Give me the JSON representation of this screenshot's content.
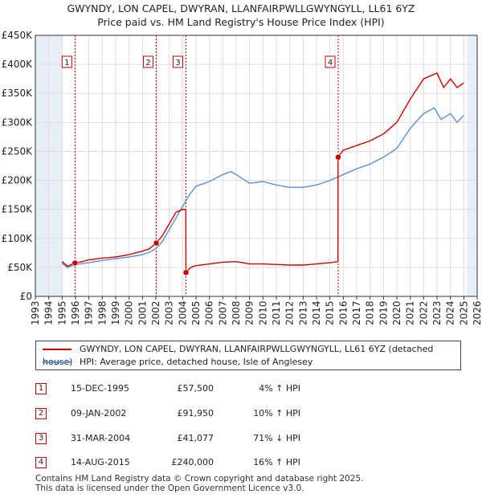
{
  "title_line1": "GWYNDY, LON CAPEL, DWYRAN, LLANFAIRPWLLGWYNGYLL, LL61 6YZ",
  "title_line2": "Price paid vs. HM Land Registry's House Price Index (HPI)",
  "colors": {
    "price": "#cc0000",
    "hpi": "#5b8fd0",
    "grid": "#dddddd",
    "shade": "#e8eef7",
    "marker": "#cc0000"
  },
  "chart_data": {
    "type": "line",
    "xlim": [
      1993,
      2026
    ],
    "ylim": [
      0,
      450000
    ],
    "x_ticks": [
      "1993",
      "1994",
      "1995",
      "1996",
      "1997",
      "1998",
      "1999",
      "2000",
      "2001",
      "2002",
      "2003",
      "2004",
      "2005",
      "2006",
      "2007",
      "2008",
      "2009",
      "2010",
      "2011",
      "2012",
      "2013",
      "2014",
      "2015",
      "2016",
      "2017",
      "2018",
      "2019",
      "2020",
      "2021",
      "2022",
      "2023",
      "2024",
      "2025",
      "2026"
    ],
    "y_ticks": [
      {
        "value": 0,
        "label": "£0"
      },
      {
        "value": 50000,
        "label": "£50K"
      },
      {
        "value": 100000,
        "label": "£100K"
      },
      {
        "value": 150000,
        "label": "£150K"
      },
      {
        "value": 200000,
        "label": "£200K"
      },
      {
        "value": 250000,
        "label": "£250K"
      },
      {
        "value": 300000,
        "label": "£300K"
      },
      {
        "value": 350000,
        "label": "£350K"
      },
      {
        "value": 400000,
        "label": "£400K"
      },
      {
        "value": 450000,
        "label": "£450K"
      }
    ],
    "data_start": 1995.0,
    "data_end": 2025.25,
    "series": [
      {
        "name": "GWYNDY, LON CAPEL, DWYRAN, LLANFAIRPWLLGWYNGYLL, LL61 6YZ (detached house)",
        "color": "#cc0000",
        "points": [
          [
            1995.0,
            60000
          ],
          [
            1995.4,
            52000
          ],
          [
            1995.96,
            57500
          ],
          [
            1996.5,
            60000
          ],
          [
            1997,
            63000
          ],
          [
            1998,
            66000
          ],
          [
            1999,
            68000
          ],
          [
            2000,
            72000
          ],
          [
            2001,
            78000
          ],
          [
            2001.5,
            82000
          ],
          [
            2002.03,
            91950
          ],
          [
            2002.5,
            105000
          ],
          [
            2003,
            125000
          ],
          [
            2003.5,
            145000
          ],
          [
            2004.0,
            150000
          ],
          [
            2004.24,
            150000
          ],
          [
            2004.25,
            41077
          ],
          [
            2004.6,
            50000
          ],
          [
            2005,
            53000
          ],
          [
            2006,
            56000
          ],
          [
            2007,
            59000
          ],
          [
            2008,
            60000
          ],
          [
            2009,
            56000
          ],
          [
            2010,
            56000
          ],
          [
            2011,
            55000
          ],
          [
            2012,
            54000
          ],
          [
            2013,
            54000
          ],
          [
            2014,
            56000
          ],
          [
            2015,
            58000
          ],
          [
            2015.6,
            60000
          ],
          [
            2015.61,
            240000
          ],
          [
            2016,
            252000
          ],
          [
            2017,
            260000
          ],
          [
            2018,
            268000
          ],
          [
            2019,
            280000
          ],
          [
            2020,
            300000
          ],
          [
            2021,
            340000
          ],
          [
            2022,
            375000
          ],
          [
            2023,
            385000
          ],
          [
            2023.5,
            360000
          ],
          [
            2024,
            375000
          ],
          [
            2024.5,
            360000
          ],
          [
            2025,
            368000
          ]
        ]
      },
      {
        "name": "HPI: Average price, detached house, Isle of Anglesey",
        "color": "#5b8fd0",
        "points": [
          [
            1995.0,
            57000
          ],
          [
            1995.4,
            50000
          ],
          [
            1996,
            55000
          ],
          [
            1997,
            58000
          ],
          [
            1998,
            62000
          ],
          [
            1999,
            65000
          ],
          [
            2000,
            68000
          ],
          [
            2001,
            72000
          ],
          [
            2001.5,
            76000
          ],
          [
            2002,
            82000
          ],
          [
            2002.5,
            95000
          ],
          [
            2003,
            115000
          ],
          [
            2003.5,
            135000
          ],
          [
            2004,
            155000
          ],
          [
            2004.5,
            175000
          ],
          [
            2005,
            190000
          ],
          [
            2006,
            198000
          ],
          [
            2007,
            210000
          ],
          [
            2007.6,
            215000
          ],
          [
            2008,
            210000
          ],
          [
            2009,
            195000
          ],
          [
            2010,
            198000
          ],
          [
            2011,
            192000
          ],
          [
            2012,
            188000
          ],
          [
            2013,
            188000
          ],
          [
            2014,
            192000
          ],
          [
            2015,
            200000
          ],
          [
            2016,
            210000
          ],
          [
            2017,
            220000
          ],
          [
            2018,
            228000
          ],
          [
            2019,
            240000
          ],
          [
            2020,
            255000
          ],
          [
            2021,
            290000
          ],
          [
            2022,
            315000
          ],
          [
            2022.8,
            325000
          ],
          [
            2023.3,
            305000
          ],
          [
            2024,
            315000
          ],
          [
            2024.5,
            300000
          ],
          [
            2025,
            312000
          ]
        ]
      }
    ],
    "sales": [
      {
        "num": "1",
        "x": 1995.96,
        "price": 57500
      },
      {
        "num": "2",
        "x": 2002.03,
        "price": 91950
      },
      {
        "num": "3",
        "x": 2004.25,
        "price": 41077
      },
      {
        "num": "4",
        "x": 2015.62,
        "price": 240000
      }
    ]
  },
  "legend": {
    "price_label": "GWYNDY, LON CAPEL, DWYRAN, LLANFAIRPWLLGWYNGYLL, LL61 6YZ (detached house)",
    "hpi_label": "HPI: Average price, detached house, Isle of Anglesey"
  },
  "transactions": [
    {
      "num": "1",
      "date": "15-DEC-1995",
      "price": "£57,500",
      "hpi": "4% ↑ HPI"
    },
    {
      "num": "2",
      "date": "09-JAN-2002",
      "price": "£91,950",
      "hpi": "10% ↑ HPI"
    },
    {
      "num": "3",
      "date": "31-MAR-2004",
      "price": "£41,077",
      "hpi": "71% ↓ HPI"
    },
    {
      "num": "4",
      "date": "14-AUG-2015",
      "price": "£240,000",
      "hpi": "16% ↑ HPI"
    }
  ],
  "footer_line1": "Contains HM Land Registry data © Crown copyright and database right 2025.",
  "footer_line2": "This data is licensed under the Open Government Licence v3.0."
}
